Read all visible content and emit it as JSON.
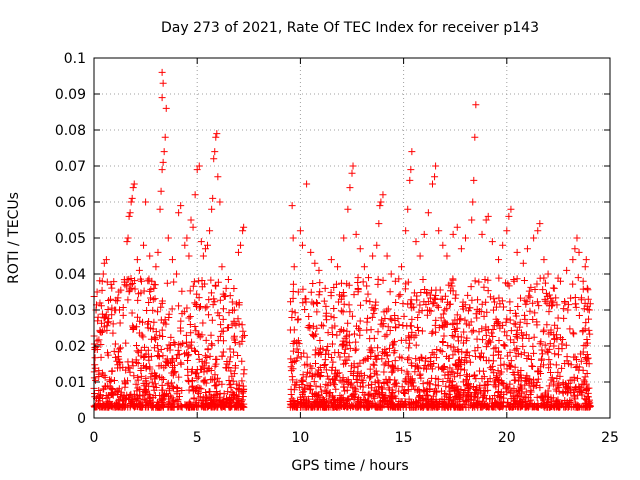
{
  "chart_data": {
    "type": "scatter",
    "title": "Day 273 of 2021, Rate Of TEC Index for receiver p143",
    "xlabel": "GPS time / hours",
    "ylabel": "ROTI / TECUs",
    "xlim": [
      0,
      25
    ],
    "ylim": [
      0,
      0.1
    ],
    "xticks": [
      0,
      5,
      10,
      15,
      20,
      25
    ],
    "yticks": [
      0,
      0.01,
      0.02,
      0.03,
      0.04,
      0.05,
      0.06,
      0.07,
      0.08,
      0.09,
      0.1
    ],
    "xtick_labels": [
      "0",
      "5",
      "10",
      "15",
      "20",
      "25"
    ],
    "ytick_labels": [
      "0",
      "0.01",
      "0.02",
      "0.03",
      "0.04",
      "0.05",
      "0.06",
      "0.07",
      "0.08",
      "0.09",
      "0.1"
    ],
    "grid": true,
    "marker": "+",
    "color": "#ff0000",
    "data_gap_hours": [
      7.3,
      9.5
    ],
    "series": [
      {
        "points": [
          [
            0.1,
            0.03
          ],
          [
            0.15,
            0.035
          ],
          [
            0.2,
            0.028
          ],
          [
            0.3,
            0.024
          ],
          [
            0.4,
            0.038
          ],
          [
            0.45,
            0.04
          ],
          [
            0.5,
            0.043
          ],
          [
            0.6,
            0.044
          ],
          [
            0.8,
            0.033
          ],
          [
            1.0,
            0.03
          ],
          [
            1.2,
            0.035
          ],
          [
            1.5,
            0.037
          ],
          [
            1.6,
            0.049
          ],
          [
            1.65,
            0.05
          ],
          [
            1.7,
            0.056
          ],
          [
            1.75,
            0.057
          ],
          [
            1.8,
            0.06
          ],
          [
            1.85,
            0.061
          ],
          [
            1.9,
            0.064
          ],
          [
            1.95,
            0.065
          ],
          [
            2.1,
            0.044
          ],
          [
            2.2,
            0.041
          ],
          [
            2.3,
            0.038
          ],
          [
            2.4,
            0.048
          ],
          [
            2.5,
            0.06
          ],
          [
            2.7,
            0.045
          ],
          [
            2.8,
            0.038
          ],
          [
            2.9,
            0.036
          ],
          [
            3.0,
            0.042
          ],
          [
            3.1,
            0.046
          ],
          [
            3.2,
            0.058
          ],
          [
            3.25,
            0.063
          ],
          [
            3.3,
            0.069
          ],
          [
            3.35,
            0.071
          ],
          [
            3.4,
            0.074
          ],
          [
            3.45,
            0.078
          ],
          [
            3.5,
            0.086
          ],
          [
            3.3,
            0.089
          ],
          [
            3.35,
            0.093
          ],
          [
            3.3,
            0.096
          ],
          [
            3.6,
            0.05
          ],
          [
            3.8,
            0.044
          ],
          [
            4.0,
            0.04
          ],
          [
            4.1,
            0.057
          ],
          [
            4.2,
            0.059
          ],
          [
            4.4,
            0.048
          ],
          [
            4.5,
            0.05
          ],
          [
            4.6,
            0.045
          ],
          [
            4.7,
            0.055
          ],
          [
            4.8,
            0.053
          ],
          [
            4.9,
            0.062
          ],
          [
            5.0,
            0.069
          ],
          [
            5.1,
            0.07
          ],
          [
            5.2,
            0.049
          ],
          [
            5.3,
            0.045
          ],
          [
            5.4,
            0.047
          ],
          [
            5.5,
            0.048
          ],
          [
            5.6,
            0.052
          ],
          [
            5.7,
            0.058
          ],
          [
            5.75,
            0.061
          ],
          [
            5.8,
            0.072
          ],
          [
            5.85,
            0.074
          ],
          [
            5.9,
            0.078
          ],
          [
            5.95,
            0.079
          ],
          [
            6.0,
            0.067
          ],
          [
            6.1,
            0.06
          ],
          [
            6.2,
            0.042
          ],
          [
            6.4,
            0.036
          ],
          [
            6.6,
            0.034
          ],
          [
            6.8,
            0.03
          ],
          [
            7.0,
            0.046
          ],
          [
            7.1,
            0.048
          ],
          [
            7.2,
            0.052
          ],
          [
            7.25,
            0.053
          ],
          [
            9.6,
            0.059
          ],
          [
            9.65,
            0.05
          ],
          [
            9.7,
            0.042
          ],
          [
            9.9,
            0.035
          ],
          [
            10.0,
            0.052
          ],
          [
            10.1,
            0.048
          ],
          [
            10.3,
            0.065
          ],
          [
            10.5,
            0.046
          ],
          [
            10.7,
            0.043
          ],
          [
            10.9,
            0.041
          ],
          [
            11.2,
            0.036
          ],
          [
            11.5,
            0.044
          ],
          [
            11.8,
            0.042
          ],
          [
            12.1,
            0.05
          ],
          [
            12.3,
            0.058
          ],
          [
            12.4,
            0.064
          ],
          [
            12.5,
            0.068
          ],
          [
            12.55,
            0.07
          ],
          [
            12.7,
            0.051
          ],
          [
            12.9,
            0.047
          ],
          [
            13.1,
            0.042
          ],
          [
            13.3,
            0.039
          ],
          [
            13.5,
            0.045
          ],
          [
            13.7,
            0.048
          ],
          [
            13.8,
            0.054
          ],
          [
            13.85,
            0.059
          ],
          [
            13.9,
            0.06
          ],
          [
            14.0,
            0.062
          ],
          [
            14.2,
            0.045
          ],
          [
            14.4,
            0.04
          ],
          [
            14.6,
            0.038
          ],
          [
            14.9,
            0.042
          ],
          [
            15.1,
            0.052
          ],
          [
            15.2,
            0.058
          ],
          [
            15.3,
            0.066
          ],
          [
            15.35,
            0.069
          ],
          [
            15.4,
            0.074
          ],
          [
            15.6,
            0.049
          ],
          [
            15.8,
            0.045
          ],
          [
            16.0,
            0.051
          ],
          [
            16.2,
            0.057
          ],
          [
            16.4,
            0.065
          ],
          [
            16.5,
            0.067
          ],
          [
            16.55,
            0.07
          ],
          [
            16.7,
            0.052
          ],
          [
            16.9,
            0.048
          ],
          [
            17.1,
            0.045
          ],
          [
            17.4,
            0.051
          ],
          [
            17.6,
            0.053
          ],
          [
            17.8,
            0.047
          ],
          [
            18.0,
            0.05
          ],
          [
            18.3,
            0.055
          ],
          [
            18.35,
            0.06
          ],
          [
            18.4,
            0.066
          ],
          [
            18.45,
            0.078
          ],
          [
            18.5,
            0.087
          ],
          [
            18.8,
            0.051
          ],
          [
            19.0,
            0.055
          ],
          [
            19.1,
            0.056
          ],
          [
            19.3,
            0.049
          ],
          [
            19.6,
            0.044
          ],
          [
            19.8,
            0.048
          ],
          [
            20.0,
            0.052
          ],
          [
            20.1,
            0.056
          ],
          [
            20.2,
            0.058
          ],
          [
            20.5,
            0.046
          ],
          [
            20.8,
            0.043
          ],
          [
            21.0,
            0.047
          ],
          [
            21.3,
            0.05
          ],
          [
            21.5,
            0.052
          ],
          [
            21.6,
            0.054
          ],
          [
            21.8,
            0.044
          ],
          [
            22.0,
            0.04
          ],
          [
            22.3,
            0.036
          ],
          [
            22.6,
            0.038
          ],
          [
            22.9,
            0.041
          ],
          [
            23.2,
            0.044
          ],
          [
            23.3,
            0.047
          ],
          [
            23.4,
            0.05
          ],
          [
            23.5,
            0.046
          ],
          [
            23.7,
            0.038
          ],
          [
            23.8,
            0.042
          ],
          [
            23.85,
            0.044
          ],
          [
            23.9,
            0.036
          ],
          [
            23.95,
            0.033
          ],
          [
            24.0,
            0.03
          ]
        ]
      }
    ]
  }
}
